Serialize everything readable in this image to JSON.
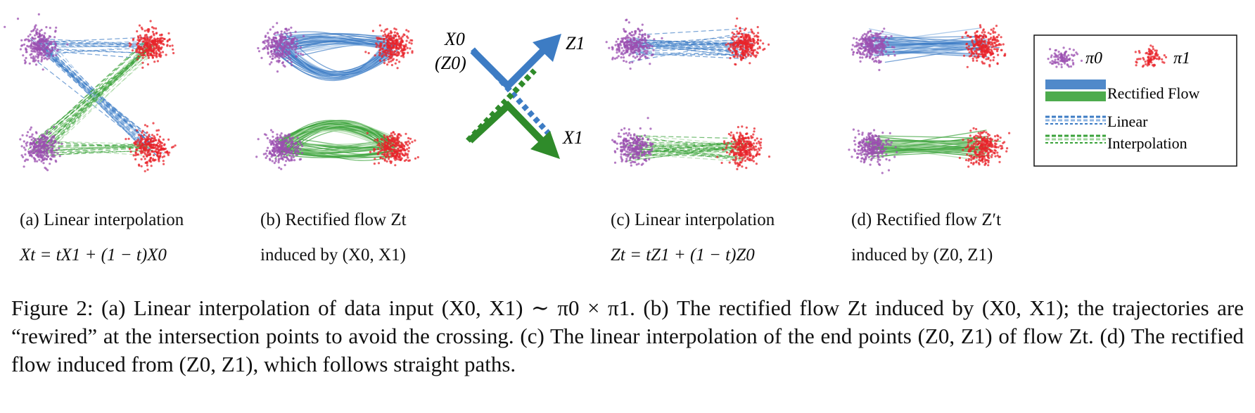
{
  "colors": {
    "pi0": "#9b4fb0",
    "pi1": "#e8232a",
    "blue": "#3d7cc4",
    "green": "#3aa23a",
    "green_dark": "#2f8b2a",
    "blue_light": "#8fb6e3",
    "green_light": "#9fd49b"
  },
  "legend": {
    "pi0": "π0",
    "pi1": "π1",
    "rectified": "Rectified Flow",
    "linear_1": "Linear",
    "linear_2": "Interpolation"
  },
  "arrow_diagram": {
    "x0": "X0",
    "z0": "(Z0)",
    "z1": "Z1",
    "x1": "X1"
  },
  "subfigures": {
    "a": {
      "line1": "(a) Linear interpolation",
      "line2": "Xt = tX1 + (1 − t)X0"
    },
    "b": {
      "line1": "(b) Rectified flow Zt",
      "line2": "induced by (X0, X1)"
    },
    "c": {
      "line1": "(c) Linear interpolation",
      "line2": "Zt = tZ1 + (1 − t)Z0"
    },
    "d": {
      "line1": "(d) Rectified flow Z′t",
      "line2": "induced by (Z0, Z1)"
    }
  },
  "caption": "Figure 2: (a) Linear interpolation of data input (X0, X1) ∼ π0 × π1. (b) The rectified flow Zt induced by (X0, X1); the trajectories are “rewired” at the intersection points to avoid the crossing. (c) The linear interpolation of the end points (Z0, Z1) of flow Zt. (d) The rectified flow induced from (Z0, Z1), which follows straight paths."
}
